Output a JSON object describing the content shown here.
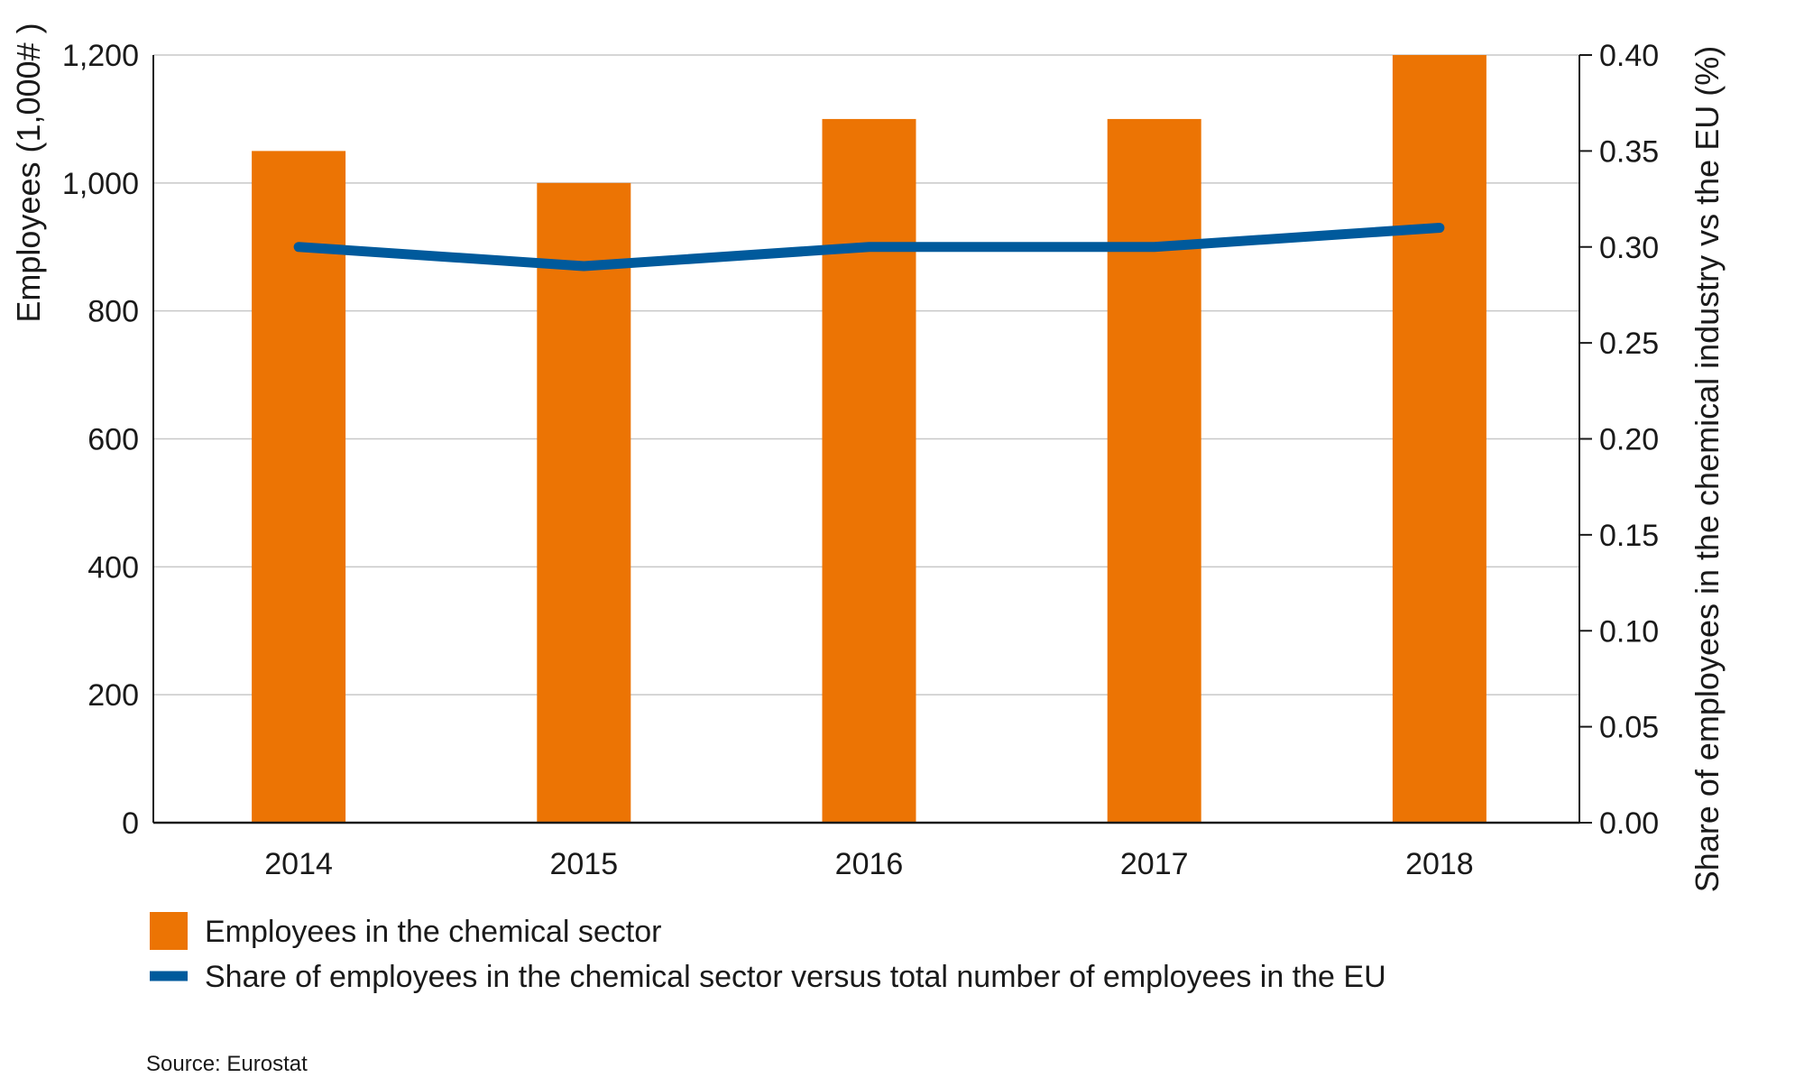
{
  "chart_data": {
    "type": "bar+line",
    "categories": [
      "2014",
      "2015",
      "2016",
      "2017",
      "2018"
    ],
    "series": [
      {
        "name": "Employees in the chemical sector",
        "type": "bar",
        "axis": "left",
        "values": [
          1050,
          1000,
          1100,
          1100,
          1200
        ]
      },
      {
        "name": "Share of employees in the chemical sector versus total number of employees in the EU",
        "type": "line",
        "axis": "right",
        "values": [
          0.3,
          0.29,
          0.3,
          0.3,
          0.31
        ]
      }
    ],
    "ylabel": "Employees (1,000# )",
    "y2label": "Share of employees in the chemical industry vs the EU (%)",
    "ylim": [
      0,
      1200
    ],
    "y2lim": [
      0,
      0.4
    ],
    "yticks": [
      "0",
      "200",
      "400",
      "600",
      "800",
      "1,000",
      "1,200"
    ],
    "y2ticks": [
      "0.00",
      "0.05",
      "0.10",
      "0.15",
      "0.20",
      "0.25",
      "0.30",
      "0.35",
      "0.40"
    ],
    "grid": true,
    "legend_position": "bottom-left",
    "source": "Source: Eurostat"
  },
  "colors": {
    "bar": "#ec7404",
    "line": "#005a9c",
    "grid": "#c8c8c8",
    "axis": "#1a1a1a"
  }
}
